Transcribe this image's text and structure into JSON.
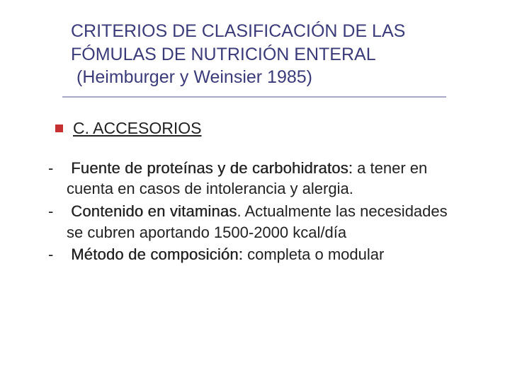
{
  "title": {
    "line1": "CRITERIOS DE CLASIFICACIÓN DE LAS",
    "line2": "FÓMULAS DE NUTRICIÓN ENTERAL",
    "line3": "(Heimburger y Weinsier 1985)"
  },
  "section": {
    "heading": "C. ACCESORIOS"
  },
  "items": [
    {
      "term": "Fuente de proteínas y de carbohidratos:",
      "rest": " a tener en cuenta en casos de intolerancia y alergia."
    },
    {
      "term": "Contenido en vitaminas",
      "rest": ". Actualmente las necesidades se cubren aportando 1500-2000 kcal/día"
    },
    {
      "term": "Método de composición:",
      "rest": " completa o modular"
    }
  ],
  "colors": {
    "title": "#3b3b7a",
    "underline": "#a8a8c8",
    "bullet": "#c73030",
    "text": "#222222",
    "background": "#ffffff"
  },
  "typography": {
    "title_fontsize": 25,
    "body_fontsize": 22,
    "font_family": "Verdana"
  }
}
